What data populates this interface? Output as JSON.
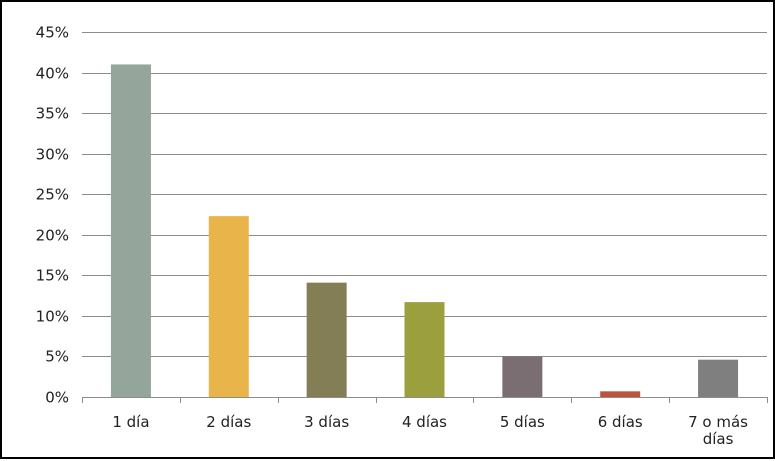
{
  "chart_data": {
    "type": "bar",
    "categories": [
      "1 día",
      "2 días",
      "3 días",
      "4 días",
      "5 días",
      "6 días",
      "7 o más días"
    ],
    "category_lines": [
      [
        "1 día"
      ],
      [
        "2 días"
      ],
      [
        "3 días"
      ],
      [
        "4 días"
      ],
      [
        "5 días"
      ],
      [
        "6 días"
      ],
      [
        "7 o más",
        "días"
      ]
    ],
    "values": [
      41.0,
      22.3,
      14.1,
      11.7,
      5.0,
      0.7,
      4.6
    ],
    "colors": [
      "#94a59b",
      "#e9b54a",
      "#847e57",
      "#9c9f3e",
      "#7a6e72",
      "#c0513d",
      "#7f7f7f"
    ],
    "ylim": [
      0,
      45
    ],
    "yticks": [
      0,
      5,
      10,
      15,
      20,
      25,
      30,
      35,
      40,
      45
    ],
    "ytick_labels": [
      "0%",
      "5%",
      "10%",
      "15%",
      "20%",
      "25%",
      "30%",
      "35%",
      "40%",
      "45%"
    ],
    "grid": true,
    "gridline_color": "#8c8c8c",
    "axis_color": "#8c8c8c",
    "title": "",
    "xlabel": "",
    "ylabel": ""
  }
}
